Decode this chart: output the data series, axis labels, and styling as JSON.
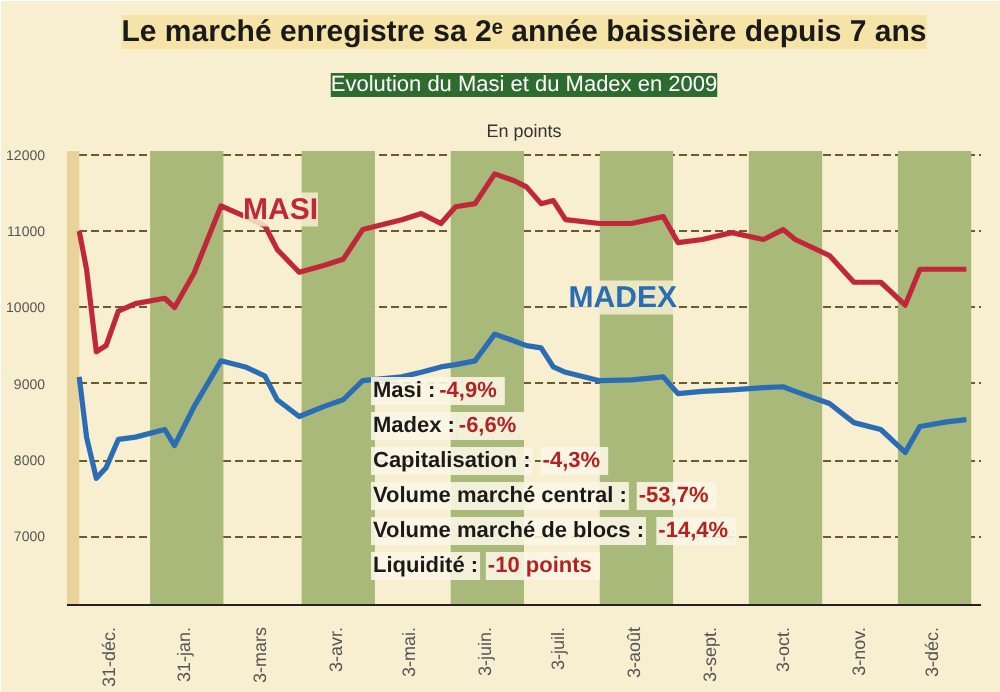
{
  "chart_data": {
    "type": "line",
    "title": "Le marché enregistre sa 2ᵉ année baissière depuis 7 ans",
    "subtitle": "Evolution du Masi et du Madex en 2009",
    "ylabel": "En points",
    "x": [
      "2008-12-19",
      "2008-12-22",
      "2008-12-26",
      "2008-12-30",
      "2009-01-04",
      "2009-01-11",
      "2009-01-23",
      "2009-01-27",
      "2009-02-04",
      "2009-02-15",
      "2009-02-25",
      "2009-03-05",
      "2009-03-10",
      "2009-03-19",
      "2009-03-29",
      "2009-04-06",
      "2009-04-14",
      "2009-04-30",
      "2009-05-08",
      "2009-05-16",
      "2009-05-22",
      "2009-05-30",
      "2009-06-07",
      "2009-06-15",
      "2009-06-20",
      "2009-06-26",
      "2009-07-01",
      "2009-07-06",
      "2009-07-20",
      "2009-08-02",
      "2009-08-15",
      "2009-08-21",
      "2009-08-31",
      "2009-09-12",
      "2009-09-25",
      "2009-10-03",
      "2009-10-08",
      "2009-10-22",
      "2009-11-01",
      "2009-11-12",
      "2009-11-22",
      "2009-11-28",
      "2009-12-09",
      "2009-12-17"
    ],
    "series": [
      {
        "name": "MASI",
        "color": "#c0283a",
        "values": [
          11000,
          10500,
          9420,
          9500,
          9950,
          10050,
          10120,
          10000,
          10450,
          11330,
          11190,
          11070,
          10760,
          10460,
          10550,
          10630,
          11020,
          11150,
          11230,
          11100,
          11320,
          11360,
          11750,
          11660,
          11580,
          11360,
          11400,
          11150,
          11100,
          11100,
          11190,
          10850,
          10890,
          10980,
          10890,
          11020,
          10890,
          10680,
          10330,
          10330,
          10030,
          10500,
          10500,
          10500
        ]
      },
      {
        "name": "MADEX",
        "color": "#2a6db5",
        "values": [
          9090,
          8300,
          7760,
          7900,
          8270,
          8300,
          8400,
          8190,
          8700,
          9300,
          9220,
          9100,
          8790,
          8570,
          8700,
          8790,
          9040,
          9090,
          9150,
          9220,
          9250,
          9300,
          9650,
          9560,
          9500,
          9470,
          9220,
          9150,
          9040,
          9050,
          9090,
          8870,
          8900,
          8920,
          8950,
          8960,
          8900,
          8740,
          8490,
          8400,
          8100,
          8440,
          8500,
          8530
        ]
      }
    ],
    "xlim": [
      "2008-12-14",
      "2009-12-23"
    ],
    "xticks": [
      {
        "value": "2008-12-31",
        "label": "31-déc."
      },
      {
        "value": "2009-01-31",
        "label": "31-jan."
      },
      {
        "value": "2009-03-03",
        "label": "3-mars"
      },
      {
        "value": "2009-04-03",
        "label": "3-avr."
      },
      {
        "value": "2009-05-03",
        "label": "3-mai."
      },
      {
        "value": "2009-06-03",
        "label": "3-juin."
      },
      {
        "value": "2009-07-03",
        "label": "3-juil."
      },
      {
        "value": "2009-08-03",
        "label": "3-août"
      },
      {
        "value": "2009-09-03",
        "label": "3-sept."
      },
      {
        "value": "2009-10-03",
        "label": "3-oct."
      },
      {
        "value": "2009-11-03",
        "label": "3-nov."
      },
      {
        "value": "2009-12-03",
        "label": "3-déc."
      }
    ],
    "ylim": [
      6100,
      12050
    ],
    "yticks": [
      7000,
      8000,
      9000,
      10000,
      11000,
      12000
    ],
    "grid": "y",
    "line_style": "solid",
    "bands": [
      {
        "axis": "x",
        "from": "2008-12-14",
        "to": "2008-12-19",
        "color": "#e8d49a"
      },
      {
        "axis": "x",
        "from": "2009-01-17",
        "to": "2009-02-16",
        "color": "#a9b97a"
      },
      {
        "axis": "x",
        "from": "2009-03-20",
        "to": "2009-04-19",
        "color": "#a9b97a"
      },
      {
        "axis": "x",
        "from": "2009-05-20",
        "to": "2009-06-19",
        "color": "#a9b97a"
      },
      {
        "axis": "x",
        "from": "2009-07-20",
        "to": "2009-08-19",
        "color": "#a9b97a"
      },
      {
        "axis": "x",
        "from": "2009-09-19",
        "to": "2009-10-19",
        "color": "#a9b97a"
      },
      {
        "axis": "x",
        "from": "2009-11-19",
        "to": "2009-12-19",
        "color": "#a9b97a"
      }
    ],
    "annotations": [
      "Masi : -4,9%",
      "Madex : -6,6%",
      "Capitalisation : -4,3%",
      "Volume marché central : -53,7%",
      "Volume marché de blocs : -14,4%",
      "Liquidité : -10 points"
    ]
  }
}
